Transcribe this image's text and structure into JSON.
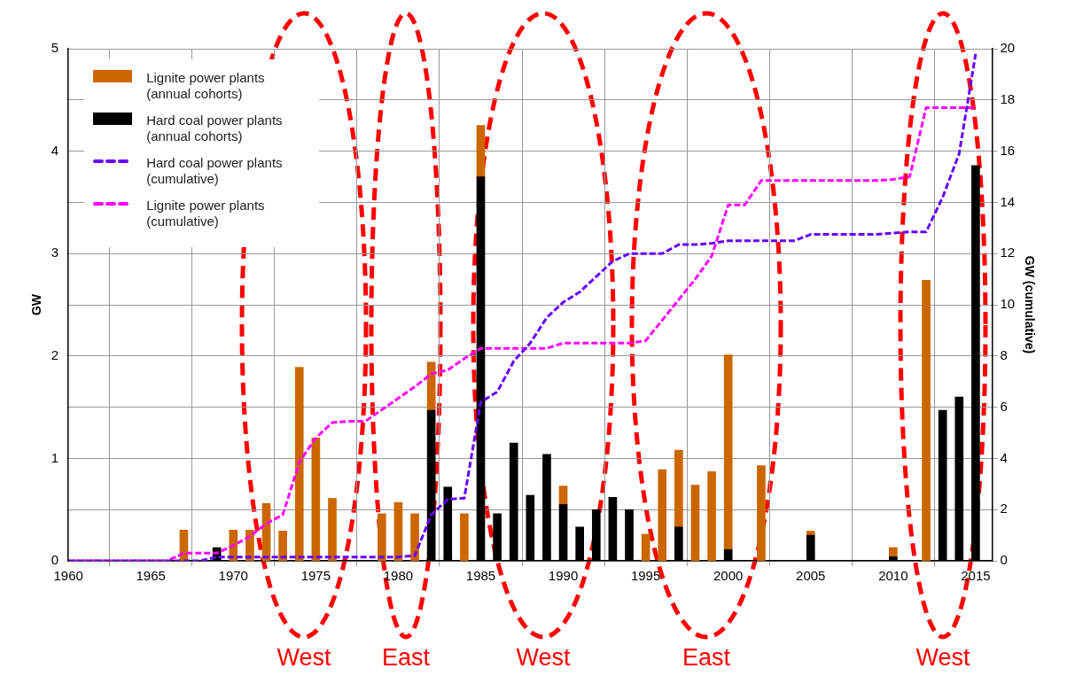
{
  "chart_data": {
    "type": "bar",
    "stacked": true,
    "ylabel": "GW",
    "y2label": "GW (cumulative)",
    "x": [
      1960,
      1961,
      1962,
      1963,
      1964,
      1965,
      1966,
      1967,
      1968,
      1969,
      1970,
      1971,
      1972,
      1973,
      1974,
      1975,
      1976,
      1977,
      1978,
      1979,
      1980,
      1981,
      1982,
      1983,
      1984,
      1985,
      1986,
      1987,
      1988,
      1989,
      1990,
      1991,
      1992,
      1993,
      1994,
      1995,
      1996,
      1997,
      1998,
      1999,
      2000,
      2001,
      2002,
      2003,
      2004,
      2005,
      2006,
      2007,
      2008,
      2009,
      2010,
      2011,
      2012,
      2013,
      2014,
      2015
    ],
    "xlim": [
      1960,
      2016
    ],
    "xticks": [
      1960,
      1965,
      1970,
      1975,
      1980,
      1985,
      1990,
      1995,
      2000,
      2005,
      2010,
      2015
    ],
    "ylim": [
      0,
      5
    ],
    "yticks": [
      0,
      1,
      2,
      3,
      4,
      5
    ],
    "y2lim": [
      0,
      20
    ],
    "y2ticks": [
      0,
      2,
      4,
      6,
      8,
      10,
      12,
      14,
      16,
      18,
      20
    ],
    "grid": true,
    "legend": "top left",
    "series": [
      {
        "name": "Hard coal power plants (annual cohorts)",
        "color": "#000000",
        "values": [
          null,
          null,
          null,
          null,
          null,
          null,
          null,
          null,
          null,
          0.13,
          null,
          null,
          null,
          null,
          null,
          null,
          null,
          null,
          null,
          null,
          null,
          null,
          1.47,
          0.72,
          null,
          3.75,
          0.46,
          1.15,
          0.64,
          1.04,
          0.55,
          0.33,
          0.5,
          0.62,
          0.5,
          null,
          null,
          0.33,
          null,
          null,
          0.11,
          null,
          null,
          null,
          null,
          0.25,
          null,
          null,
          null,
          null,
          0.04,
          null,
          null,
          1.47,
          1.6,
          3.86
        ]
      },
      {
        "name": "Lignite power plants (annual cohorts)",
        "color": "#cc6600",
        "values": [
          null,
          null,
          null,
          null,
          null,
          null,
          null,
          0.3,
          null,
          null,
          0.3,
          0.3,
          0.56,
          0.29,
          1.89,
          1.2,
          0.61,
          null,
          null,
          0.46,
          0.57,
          0.46,
          0.47,
          null,
          0.46,
          0.5,
          null,
          null,
          null,
          null,
          0.18,
          null,
          null,
          null,
          null,
          0.26,
          0.89,
          0.75,
          0.74,
          0.87,
          1.9,
          null,
          0.93,
          null,
          null,
          0.04,
          null,
          null,
          null,
          null,
          0.09,
          null,
          2.74,
          null,
          null,
          null
        ]
      },
      {
        "name": "Hard coal power plants (cumulative)",
        "type": "line",
        "axis": "y2",
        "line_style": "dashed",
        "marker": "none",
        "color": "#6600ff",
        "values": [
          0,
          0,
          0,
          0,
          0,
          0,
          0,
          0,
          0,
          0.15,
          0.15,
          0.15,
          0.15,
          0.15,
          0.15,
          0.15,
          0.15,
          0.15,
          0.15,
          0.15,
          0.15,
          0.2,
          1.8,
          2.4,
          2.45,
          6.2,
          6.6,
          7.8,
          8.5,
          9.5,
          10.1,
          10.5,
          11.1,
          11.7,
          12.0,
          12.0,
          12.0,
          12.35,
          12.35,
          12.4,
          12.5,
          12.5,
          12.5,
          12.5,
          12.5,
          12.75,
          12.75,
          12.75,
          12.75,
          12.75,
          12.8,
          12.85,
          12.85,
          14.2,
          15.9,
          19.8
        ]
      },
      {
        "name": "Lignite power plants (cumulative)",
        "type": "line",
        "axis": "y2",
        "line_style": "dashed",
        "marker": "none",
        "color": "#ff00ff",
        "values": [
          0,
          0,
          0,
          0,
          0,
          0,
          0,
          0.3,
          0.3,
          0.3,
          0.6,
          0.95,
          1.45,
          1.8,
          3.85,
          4.8,
          5.4,
          5.45,
          5.45,
          5.9,
          6.35,
          6.8,
          7.3,
          7.45,
          7.9,
          8.3,
          8.3,
          8.3,
          8.3,
          8.3,
          8.5,
          8.5,
          8.5,
          8.5,
          8.5,
          8.6,
          9.4,
          10.2,
          11.0,
          11.9,
          13.9,
          13.9,
          14.85,
          14.85,
          14.85,
          14.85,
          14.85,
          14.85,
          14.85,
          14.85,
          14.9,
          15.0,
          17.7,
          17.7,
          17.7,
          17.7
        ]
      }
    ],
    "annotations": [
      "West",
      "East",
      "West",
      "East",
      "West"
    ]
  }
}
